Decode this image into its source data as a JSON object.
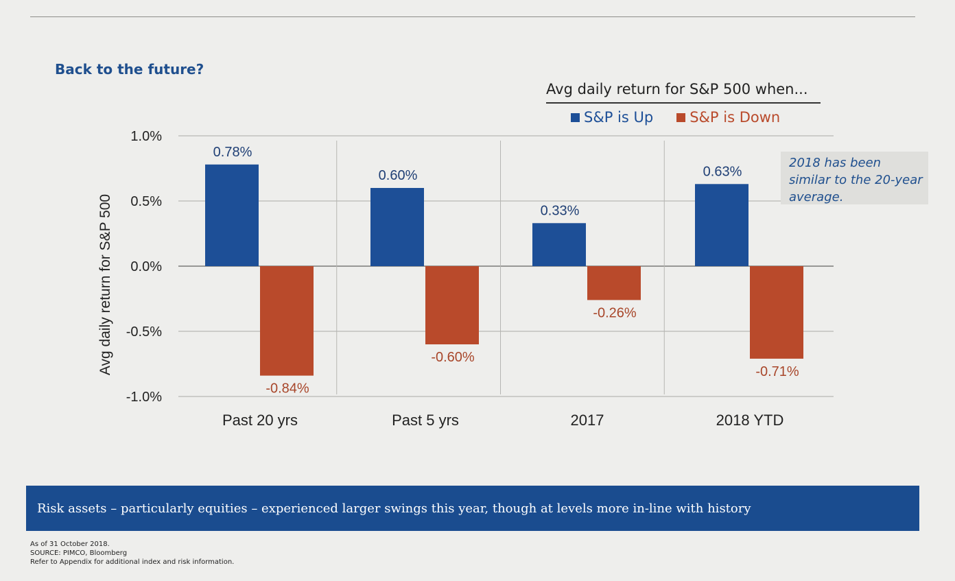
{
  "page": {
    "title": "Back to the future?",
    "callout": "2018 has been similar to the 20-year average.",
    "banner": "Risk assets – particularly equities – experienced larger swings this year, though at levels more in-line with history",
    "footnotes": [
      "As of 31 October 2018.",
      "SOURCE: PIMCO, Bloomberg",
      "Refer to Appendix for additional index and risk information."
    ]
  },
  "colors": {
    "up": "#1d4f97",
    "down": "#b94a2b",
    "title": "#1f4f8e",
    "banner_bg": "#1a4c8f"
  },
  "chart_data": {
    "type": "bar",
    "title": "Avg daily return for S&P 500 when...",
    "ylabel": "Avg daily return for S&P 500",
    "xlabel": "",
    "ylim": [
      -1.0,
      1.0
    ],
    "yticks": [
      "1.0%",
      "0.5%",
      "0.0%",
      "-0.5%",
      "-1.0%"
    ],
    "ytick_values": [
      1.0,
      0.5,
      0.0,
      -0.5,
      -1.0
    ],
    "categories": [
      "Past 20 yrs",
      "Past 5 yrs",
      "2017",
      "2018 YTD"
    ],
    "series": [
      {
        "name": "S&P is Up",
        "values": [
          0.78,
          0.6,
          0.33,
          0.63
        ],
        "labels": [
          "0.78%",
          "0.60%",
          "0.33%",
          "0.63%"
        ]
      },
      {
        "name": "S&P is Down",
        "values": [
          -0.84,
          -0.6,
          -0.26,
          -0.71
        ],
        "labels": [
          "-0.84%",
          "-0.60%",
          "-0.26%",
          "-0.71%"
        ]
      }
    ],
    "legend_position": "top-right",
    "grid": true
  }
}
